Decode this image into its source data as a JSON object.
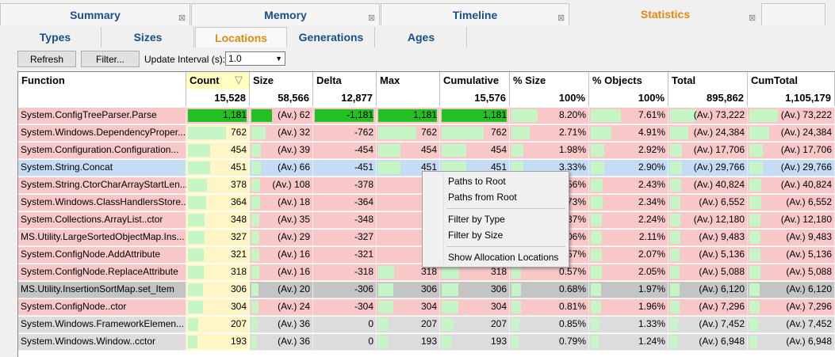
{
  "top_tabs": [
    {
      "label": "Summary",
      "active": false
    },
    {
      "label": "Memory",
      "active": false
    },
    {
      "label": "Timeline",
      "active": false
    },
    {
      "label": "Statistics",
      "active": true
    }
  ],
  "sub_tabs": [
    {
      "label": "Types",
      "active": false
    },
    {
      "label": "Sizes",
      "active": false
    },
    {
      "label": "Locations",
      "active": true
    },
    {
      "label": "Generations",
      "active": false
    },
    {
      "label": "Ages",
      "active": false
    }
  ],
  "toolbar": {
    "refresh_label": "Refresh",
    "filter_label": "Filter...",
    "interval_label": "Update Interval (s):",
    "interval_value": "1.0"
  },
  "columns": [
    "Function",
    "Count",
    "Size",
    "Delta",
    "Max",
    "Cumulative",
    "% Size",
    "% Objects",
    "Total",
    "CumTotal"
  ],
  "totals": [
    "",
    "15,528",
    "58,566",
    "12,877",
    "",
    "15,576",
    "100%",
    "100%",
    "895,862",
    "1,105,179"
  ],
  "rows": [
    {
      "function": "System.ConfigTreeParser.Parse",
      "count": "1,181",
      "size": "(Av.) 62",
      "delta": "-1,181",
      "max": "1,181",
      "cumulative": "1,181",
      "pct_size": "8.20%",
      "pct_objects": "7.61%",
      "total": "(Av.) 73,222",
      "cumtotal": "(Av.) 73,222",
      "color": "#f8c8c8",
      "count_frac": 1.0,
      "big": true
    },
    {
      "function": "System.Windows.DependencyProper...",
      "count": "762",
      "size": "(Av.) 32",
      "delta": "-762",
      "max": "762",
      "cumulative": "762",
      "pct_size": "2.71%",
      "pct_objects": "4.91%",
      "total": "(Av.) 24,384",
      "cumtotal": "(Av.) 24,384",
      "color": "#f8c8c8",
      "count_frac": 0.65,
      "big": false
    },
    {
      "function": "System.Configuration.Configuration...",
      "count": "454",
      "size": "(Av.) 39",
      "delta": "-454",
      "max": "454",
      "cumulative": "454",
      "pct_size": "1.98%",
      "pct_objects": "2.92%",
      "total": "(Av.) 17,706",
      "cumtotal": "(Av.) 17,706",
      "color": "#f8c8c8",
      "count_frac": 0.38,
      "big": false
    },
    {
      "function": "System.String.Concat",
      "count": "451",
      "size": "(Av.) 66",
      "delta": "-451",
      "max": "451",
      "cumulative": "451",
      "pct_size": "3.33%",
      "pct_objects": "2.90%",
      "total": "(Av.) 29,766",
      "cumtotal": "(Av.) 29,766",
      "color": "#c6dcf5",
      "count_frac": 0.38,
      "big": false
    },
    {
      "function": "System.String.CtorCharArrayStartLen...",
      "count": "378",
      "size": "(Av.) 108",
      "delta": "-378",
      "max": "",
      "cumulative": "",
      "pct_size": ".56%",
      "pct_objects": "2.43%",
      "total": "(Av.) 40,824",
      "cumtotal": "(Av.) 40,824",
      "color": "#f8c8c8",
      "count_frac": 0.32,
      "big": false
    },
    {
      "function": "System.Windows.ClassHandlersStore...",
      "count": "364",
      "size": "(Av.) 18",
      "delta": "-364",
      "max": "",
      "cumulative": "",
      "pct_size": ".73%",
      "pct_objects": "2.34%",
      "total": "(Av.) 6,552",
      "cumtotal": "(Av.) 6,552",
      "color": "#f8c8c8",
      "count_frac": 0.31,
      "big": false
    },
    {
      "function": "System.Collections.ArrayList..ctor",
      "count": "348",
      "size": "(Av.) 35",
      "delta": "-348",
      "max": "",
      "cumulative": "",
      "pct_size": ".37%",
      "pct_objects": "2.24%",
      "total": "(Av.) 12,180",
      "cumtotal": "(Av.) 12,180",
      "color": "#f8c8c8",
      "count_frac": 0.29,
      "big": false
    },
    {
      "function": "MS.Utility.LargeSortedObjectMap.Ins...",
      "count": "327",
      "size": "(Av.) 29",
      "delta": "-327",
      "max": "",
      "cumulative": "",
      "pct_size": ".06%",
      "pct_objects": "2.11%",
      "total": "(Av.) 9,483",
      "cumtotal": "(Av.) 9,483",
      "color": "#f8c8c8",
      "count_frac": 0.28,
      "big": false
    },
    {
      "function": "System.ConfigNode.AddAttribute",
      "count": "321",
      "size": "(Av.) 16",
      "delta": "-321",
      "max": "",
      "cumulative": "",
      "pct_size": ".57%",
      "pct_objects": "2.07%",
      "total": "(Av.) 5,136",
      "cumtotal": "(Av.) 5,136",
      "color": "#f8c8c8",
      "count_frac": 0.27,
      "big": false
    },
    {
      "function": "System.ConfigNode.ReplaceAttribute",
      "count": "318",
      "size": "(Av.) 16",
      "delta": "-318",
      "max": "318",
      "cumulative": "318",
      "pct_size": "0.57%",
      "pct_objects": "2.05%",
      "total": "(Av.) 5,088",
      "cumtotal": "(Av.) 5,088",
      "color": "#f8c8c8",
      "count_frac": 0.27,
      "big": false
    },
    {
      "function": "MS.Utility.InsertionSortMap.set_Item",
      "count": "306",
      "size": "(Av.) 20",
      "delta": "-306",
      "max": "306",
      "cumulative": "306",
      "pct_size": "0.68%",
      "pct_objects": "1.97%",
      "total": "(Av.) 6,120",
      "cumtotal": "(Av.) 6,120",
      "color": "#c4c4c4",
      "count_frac": 0.26,
      "big": false
    },
    {
      "function": "System.ConfigNode..ctor",
      "count": "304",
      "size": "(Av.) 24",
      "delta": "-304",
      "max": "304",
      "cumulative": "304",
      "pct_size": "0.81%",
      "pct_objects": "1.96%",
      "total": "(Av.) 7,296",
      "cumtotal": "(Av.) 7,296",
      "color": "#f8c8c8",
      "count_frac": 0.26,
      "big": false
    },
    {
      "function": "System.Windows.FrameworkElemen...",
      "count": "207",
      "size": "(Av.) 36",
      "delta": "0",
      "max": "207",
      "cumulative": "207",
      "pct_size": "0.85%",
      "pct_objects": "1.33%",
      "total": "(Av.) 7,452",
      "cumtotal": "(Av.) 7,452",
      "color": "#dcdcdc",
      "count_frac": 0.18,
      "big": false
    },
    {
      "function": "System.Windows.Window..cctor",
      "count": "193",
      "size": "(Av.) 36",
      "delta": "0",
      "max": "193",
      "cumulative": "193",
      "pct_size": "0.79%",
      "pct_objects": "1.24%",
      "total": "(Av.) 6,948",
      "cumtotal": "(Av.) 6,948",
      "color": "#dcdcdc",
      "count_frac": 0.16,
      "big": false
    }
  ],
  "context_menu": [
    "Paths to Root",
    "Paths from Root",
    "Filter by Type",
    "Filter by Size",
    "Show Allocation Locations"
  ]
}
